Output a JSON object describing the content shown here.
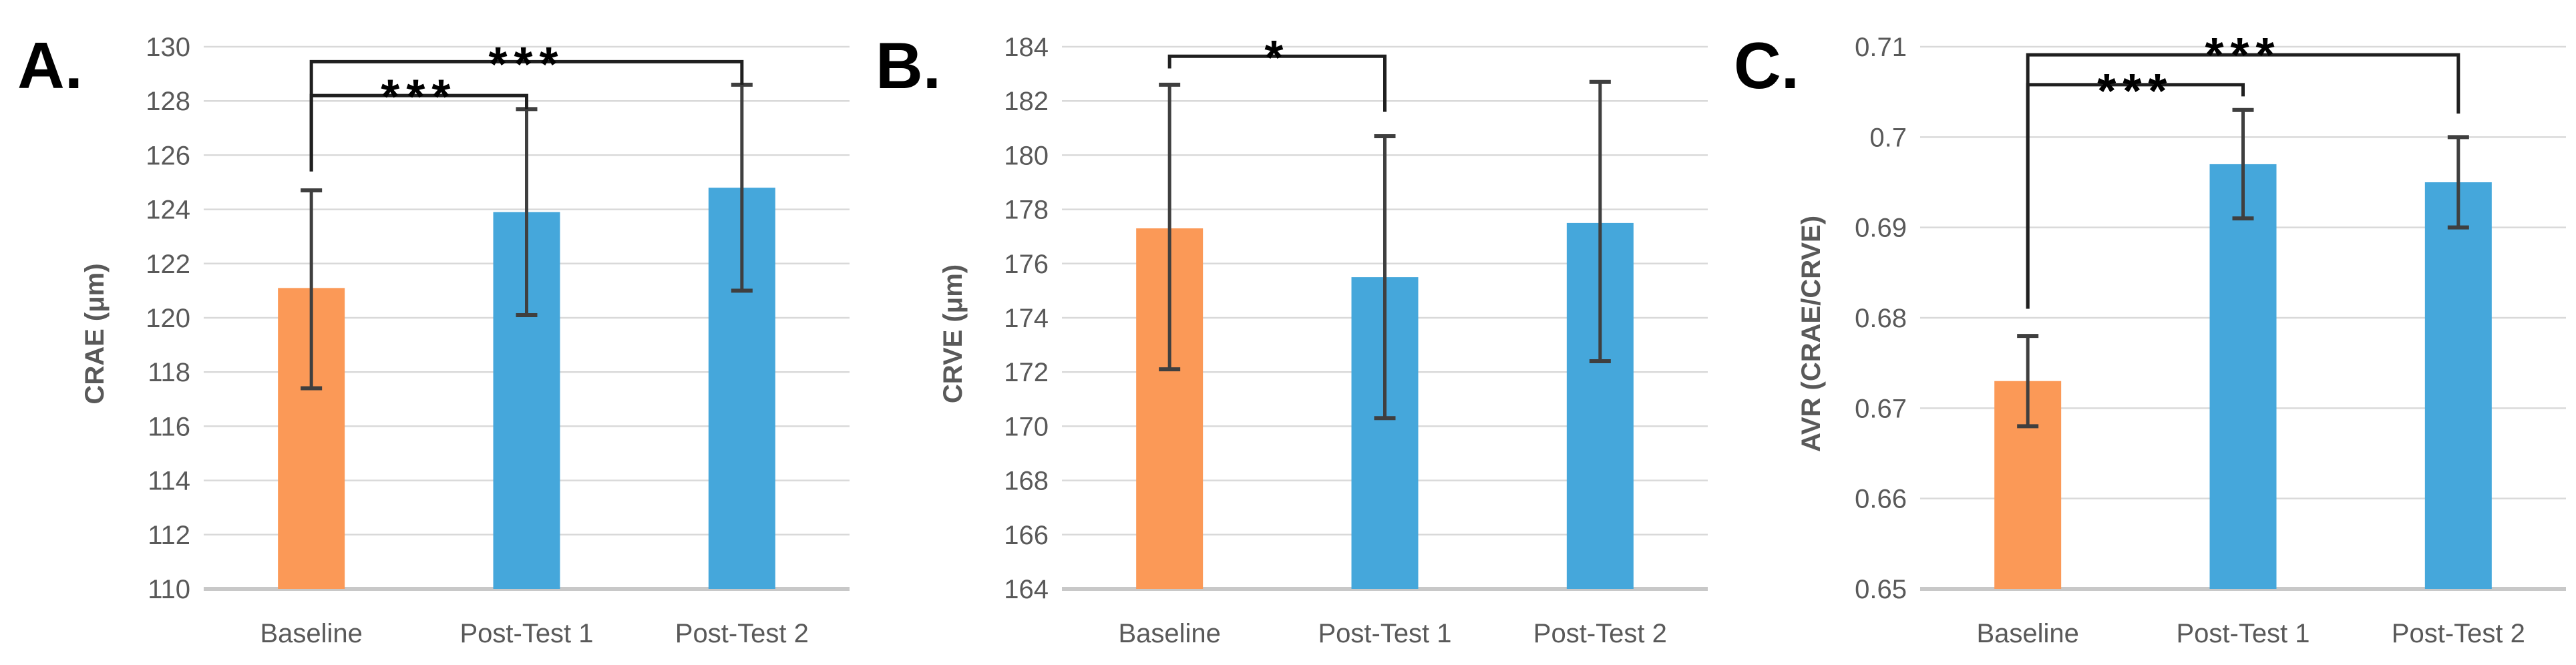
{
  "colors": {
    "orange": "#FB9957",
    "blue": "#45A7DB",
    "grid": "#D9D9D9",
    "axis_line": "#C8C8C8",
    "error_bar": "#3F3F3F",
    "bracket": "#1F1F1F",
    "sig_label": "#000000",
    "text": "#595959",
    "panel_letter": "#000000",
    "background": "#FFFFFF"
  },
  "chart_data": [
    {
      "panel_label": "A.",
      "type": "bar",
      "title": "",
      "xlabel": "",
      "ylabel": "CRAE (μm)",
      "ylim": [
        110,
        130
      ],
      "ytick_step": 2,
      "ytick_labels": [
        "110",
        "112",
        "114",
        "116",
        "118",
        "120",
        "122",
        "124",
        "126",
        "128",
        "130"
      ],
      "grid": true,
      "legend": false,
      "categories": [
        "Baseline",
        "Post-Test 1",
        "Post-Test 2"
      ],
      "values": [
        121.1,
        123.9,
        124.8
      ],
      "error_low": [
        117.4,
        120.1,
        121.0
      ],
      "error_high": [
        124.7,
        127.7,
        128.6
      ],
      "bar_color_keys": [
        "orange",
        "blue",
        "blue"
      ],
      "significance": [
        {
          "from": "Baseline",
          "to": "Post-Test 1",
          "label": "***",
          "bar_y": 128.2,
          "left_end_y": 125.4,
          "right_end_y": 127.7,
          "label_y": 128.85
        },
        {
          "from": "Baseline",
          "to": "Post-Test 2",
          "label": "***",
          "bar_y": 129.45,
          "left_end_y": 125.4,
          "right_end_y": 128.6,
          "label_y": 130.05
        }
      ]
    },
    {
      "panel_label": "B.",
      "type": "bar",
      "title": "",
      "xlabel": "",
      "ylabel": "CRVE (μm)",
      "ylim": [
        164,
        184
      ],
      "ytick_step": 2,
      "ytick_labels": [
        "164",
        "166",
        "168",
        "170",
        "172",
        "174",
        "176",
        "178",
        "180",
        "182",
        "184"
      ],
      "grid": true,
      "legend": false,
      "categories": [
        "Baseline",
        "Post-Test 1",
        "Post-Test 2"
      ],
      "values": [
        177.3,
        175.5,
        177.5
      ],
      "error_low": [
        172.1,
        170.3,
        172.4
      ],
      "error_high": [
        182.6,
        180.7,
        182.7
      ],
      "bar_color_keys": [
        "orange",
        "blue",
        "blue"
      ],
      "significance": [
        {
          "from": "Baseline",
          "to": "Post-Test 1",
          "label": "*",
          "bar_y": 183.65,
          "left_end_y": 183.2,
          "right_end_y": 181.6,
          "label_y": 184.3
        }
      ]
    },
    {
      "panel_label": "C.",
      "type": "bar",
      "title": "",
      "xlabel": "",
      "ylabel": "AVR  (CRAE/CRVE)",
      "ylim": [
        0.65,
        0.71
      ],
      "ytick_step": 0.01,
      "ytick_labels": [
        "0.65",
        "0.66",
        "0.67",
        "0.68",
        "0.69",
        "0.7",
        "0.71"
      ],
      "grid": true,
      "legend": false,
      "categories": [
        "Baseline",
        "Post-Test 1",
        "Post-Test 2"
      ],
      "values": [
        0.673,
        0.697,
        0.695
      ],
      "error_low": [
        0.668,
        0.691,
        0.69
      ],
      "error_high": [
        0.678,
        0.703,
        0.7
      ],
      "bar_color_keys": [
        "orange",
        "blue",
        "blue"
      ],
      "significance": [
        {
          "from": "Baseline",
          "to": "Post-Test 1",
          "label": "***",
          "bar_y": 0.7058,
          "left_end_y": 0.681,
          "right_end_y": 0.7045,
          "label_y": 0.7072
        },
        {
          "from": "Baseline",
          "to": "Post-Test 2",
          "label": "***",
          "bar_y": 0.7091,
          "left_end_y": 0.681,
          "right_end_y": 0.7026,
          "label_y": 0.7112
        }
      ]
    }
  ]
}
